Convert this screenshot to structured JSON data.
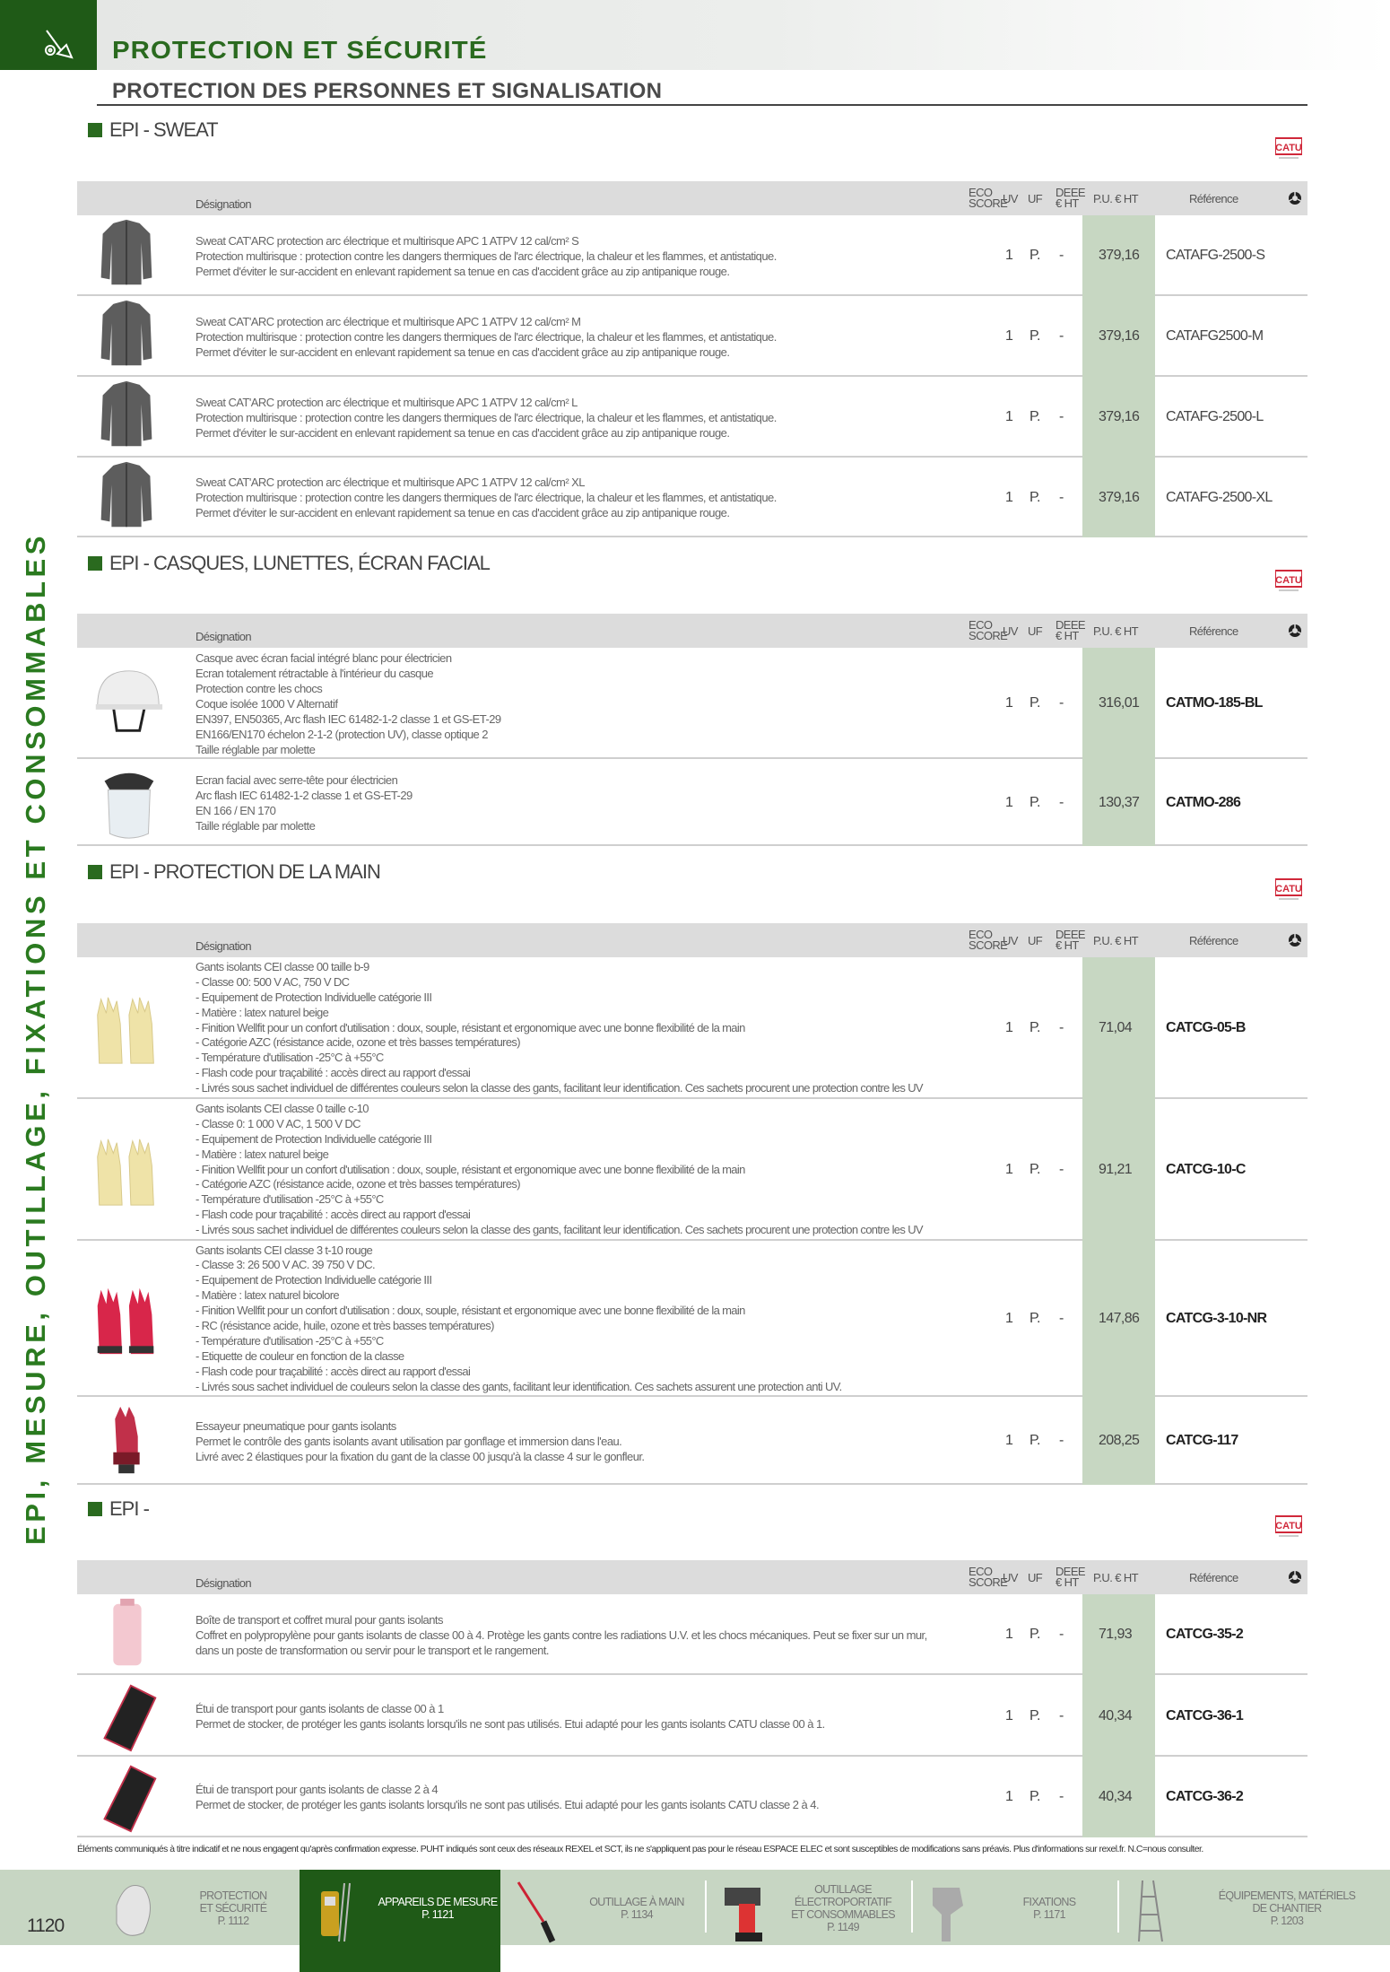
{
  "header": {
    "title": "PROTECTION ET SÉCURITÉ",
    "subtitle": "PROTECTION DES PERSONNES ET SIGNALISATION",
    "icon": "tools-icon",
    "accent": "#1f5a17"
  },
  "side_label": "EPI, MESURE, OUTILLAGE, FIXATIONS ET CONSOMMABLES",
  "brand_logo": "CATU",
  "columns": {
    "designation": "Désignation",
    "eco_score": [
      "ECO",
      "SCORE"
    ],
    "uv": "UV",
    "uf": "UF",
    "deee": [
      "DEEE",
      "€ HT"
    ],
    "pu": "P.U. € HT",
    "reference": "Référence",
    "icon": "recycle-icon"
  },
  "sections": [
    {
      "title": "EPI - SWEAT",
      "products": [
        {
          "image": "sweat-jacket",
          "lines": [
            "Sweat CAT'ARC protection arc électrique et multirisque APC 1 ATPV 12 cal/cm² S",
            "Protection multirisque : protection contre les dangers thermiques de l'arc électrique, la chaleur et les flammes, et antistatique.",
            "Permet d'éviter le sur-accident en enlevant rapidement sa tenue en cas d'accident grâce au zip antipanique rouge."
          ],
          "uv": "1",
          "uf": "P.",
          "deee": "-",
          "price": "379,16",
          "reference": "CATAFG-2500-S"
        },
        {
          "image": "sweat-jacket",
          "lines": [
            "Sweat CAT'ARC protection arc électrique et multirisque APC 1 ATPV 12 cal/cm² M",
            "Protection multirisque : protection contre les dangers thermiques de l'arc électrique, la chaleur et les flammes, et antistatique.",
            "Permet d'éviter le sur-accident en enlevant rapidement sa tenue en cas d'accident grâce au zip antipanique rouge."
          ],
          "uv": "1",
          "uf": "P.",
          "deee": "-",
          "price": "379,16",
          "reference": "CATAFG2500-M"
        },
        {
          "image": "sweat-jacket",
          "lines": [
            "Sweat CAT'ARC protection arc électrique et multirisque APC 1 ATPV 12 cal/cm² L",
            "Protection multirisque : protection contre les dangers thermiques de l'arc électrique, la chaleur et les flammes, et antistatique.",
            "Permet d'éviter le sur-accident en enlevant rapidement sa tenue en cas d'accident grâce au zip antipanique rouge."
          ],
          "uv": "1",
          "uf": "P.",
          "deee": "-",
          "price": "379,16",
          "reference": "CATAFG-2500-L"
        },
        {
          "image": "sweat-jacket",
          "lines": [
            "Sweat CAT'ARC protection arc électrique et multirisque APC 1 ATPV 12 cal/cm² XL",
            "Protection multirisque : protection contre les dangers thermiques de l'arc électrique, la chaleur et les flammes, et antistatique.",
            "Permet d'éviter le sur-accident en enlevant rapidement sa tenue en cas d'accident grâce au zip antipanique rouge."
          ],
          "uv": "1",
          "uf": "P.",
          "deee": "-",
          "price": "379,16",
          "reference": "CATAFG-2500-XL"
        }
      ]
    },
    {
      "title": "EPI - CASQUES, LUNETTES, ÉCRAN FACIAL",
      "products": [
        {
          "image": "helmet",
          "lines": [
            "Casque avec écran facial intégré blanc pour électricien",
            "Ecran totalement rétractable à l'intérieur du casque",
            "Protection contre les chocs",
            "Coque isolée 1000 V Alternatif",
            "EN397, EN50365, Arc flash IEC 61482-1-2 classe 1 et GS-ET-29",
            "EN166/EN170 échelon 2-1-2 (protection UV), classe optique 2",
            "Taille réglable par molette"
          ],
          "uv": "1",
          "uf": "P.",
          "deee": "-",
          "price": "316,01",
          "reference": "CATMO-185-BL"
        },
        {
          "image": "face-shield",
          "lines": [
            "Ecran facial avec serre-tête pour électricien",
            "Arc flash IEC 61482-1-2 classe 1 et GS-ET-29",
            "EN 166 / EN 170",
            "Taille réglable par molette"
          ],
          "uv": "1",
          "uf": "P.",
          "deee": "-",
          "price": "130,37",
          "reference": "CATMO-286"
        }
      ]
    },
    {
      "title": "EPI - PROTECTION DE LA MAIN",
      "products": [
        {
          "image": "beige-gloves",
          "lines": [
            "Gants isolants CEI classe 00 taille b-9",
            "- Classe 00: 500 V AC, 750 V DC",
            "- Equipement de Protection Individuelle catégorie III",
            "- Matière : latex naturel beige",
            "- Finition Wellfit pour un confort d'utilisation : doux, souple, résistant et ergonomique avec une bonne flexibilité de la main",
            "- Catégorie AZC (résistance acide, ozone et très basses températures)",
            "- Température d'utilisation -25°C à +55°C",
            "- Flash code pour traçabilité : accès direct au rapport d'essai",
            "- Livrés sous sachet individuel de différentes couleurs selon la classe des gants, facilitant leur identification. Ces sachets procurent une protection contre les UV"
          ],
          "uv": "1",
          "uf": "P.",
          "deee": "-",
          "price": "71,04",
          "reference": "CATCG-05-B"
        },
        {
          "image": "beige-gloves",
          "lines": [
            "Gants isolants CEI classe 0 taille c-10",
            "- Classe 0: 1 000 V AC, 1 500 V DC",
            "- Equipement de Protection Individuelle catégorie III",
            "- Matière : latex naturel beige",
            "- Finition Wellfit pour un confort d'utilisation : doux, souple, résistant et ergonomique avec une bonne flexibilité de la main",
            "- Catégorie AZC (résistance acide, ozone et très basses températures)",
            "- Température d'utilisation -25°C à +55°C",
            "- Flash code pour traçabilité : accès direct au rapport d'essai",
            "- Livrés sous sachet individuel de différentes couleurs selon la classe des gants, facilitant leur identification. Ces sachets procurent une protection contre les UV"
          ],
          "uv": "1",
          "uf": "P.",
          "deee": "-",
          "price": "91,21",
          "reference": "CATCG-10-C"
        },
        {
          "image": "red-gloves",
          "lines": [
            "Gants isolants CEI classe 3 t-10 rouge",
            "- Classe 3: 26 500 V AC. 39 750 V DC.",
            "- Equipement de Protection Individuelle catégorie III",
            "- Matière : latex naturel bicolore",
            "- Finition Wellfit pour un confort d'utilisation : doux, souple, résistant et ergonomique avec une bonne flexibilité de la main",
            "- RC (résistance acide, huile, ozone et très basses températures)",
            "- Température d'utilisation -25°C à +55°C",
            "- Etiquette de couleur en fonction de la classe",
            "- Flash code pour traçabilité : accès direct au rapport d'essai",
            "- Livrés sous sachet individuel de couleurs selon la classe des gants, facilitant leur identification. Ces sachets assurent une protection anti UV."
          ],
          "uv": "1",
          "uf": "P.",
          "deee": "-",
          "price": "147,86",
          "reference": "CATCG-3-10-NR"
        },
        {
          "image": "glove-tester",
          "lines": [
            "Essayeur pneumatique pour gants isolants",
            "Permet le contrôle des gants isolants avant utilisation par gonflage et immersion dans l'eau.",
            "Livré avec 2 élastiques pour la fixation du gant de la classe 00 jusqu'à la classe 4 sur le gonfleur."
          ],
          "uv": "1",
          "uf": "P.",
          "deee": "-",
          "price": "208,25",
          "reference": "CATCG-117"
        }
      ]
    },
    {
      "title": "EPI -",
      "products": [
        {
          "image": "glove-box",
          "lines": [
            "Boîte de transport et coffret mural pour gants isolants",
            "Coffret en polypropylène pour gants isolants de classe 00 à 4. Protège les gants contre les radiations U.V. et les chocs mécaniques. Peut se fixer sur un mur,",
            "dans un poste de transformation ou servir pour le transport et le rangement."
          ],
          "uv": "1",
          "uf": "P.",
          "deee": "-",
          "price": "71,93",
          "reference": "CATCG-35-2"
        },
        {
          "image": "glove-pouch",
          "lines": [
            "Étui de transport pour gants isolants de classe 00 à 1",
            "Permet de stocker, de protéger les gants isolants lorsqu'ils ne sont pas utilisés. Etui adapté pour les gants isolants CATU classe 00 à 1."
          ],
          "uv": "1",
          "uf": "P.",
          "deee": "-",
          "price": "40,34",
          "reference": "CATCG-36-1"
        },
        {
          "image": "glove-pouch",
          "lines": [
            "Étui de transport pour gants isolants de classe 2 à 4",
            "Permet de stocker, de protéger les gants isolants lorsqu'ils ne sont pas utilisés. Etui adapté pour les gants isolants CATU classe 2 à 4."
          ],
          "uv": "1",
          "uf": "P.",
          "deee": "-",
          "price": "40,34",
          "reference": "CATCG-36-2"
        }
      ]
    }
  ],
  "footer_note": "Éléments communiqués à titre indicatif et ne nous engagent qu'après confirmation expresse. PUHT indiqués sont ceux des réseaux REXEL et SCT, ils ne s'appliquent pas pour le réseau ESPACE ELEC et sont susceptibles de modifications sans préavis. Plus d'informations sur rexel.fr. N.C=nous consulter.",
  "page_number": "1120",
  "nav": [
    {
      "lines": [
        "PROTECTION",
        "ET SÉCURITÉ",
        "P. 1112"
      ],
      "image": "mask-icon",
      "selected": false
    },
    {
      "lines": [
        "APPAREILS DE MESURE",
        "P. 1121"
      ],
      "image": "multimeter-icon",
      "selected": true
    },
    {
      "lines": [
        "OUTILLAGE À MAIN",
        "P. 1134"
      ],
      "image": "screwdriver-icon",
      "selected": false
    },
    {
      "lines": [
        "OUTILLAGE",
        "ÉLECTROPORTATIF",
        "ET CONSOMMABLES",
        "P. 1149"
      ],
      "image": "drill-icon",
      "selected": false
    },
    {
      "lines": [
        "FIXATIONS",
        "P. 1171"
      ],
      "image": "anchor-icon",
      "selected": false
    },
    {
      "lines": [
        "ÉQUIPEMENTS, MATÉRIELS",
        "DE CHANTIER",
        "P. 1203"
      ],
      "image": "ladder-icon",
      "selected": false
    }
  ],
  "colors": {
    "green": "#1f5a17",
    "price_column": "#c7d7c2",
    "header_row": "#dcdcdc",
    "nav_band": "#c7d6c3",
    "brand_red": "#d0283a"
  }
}
